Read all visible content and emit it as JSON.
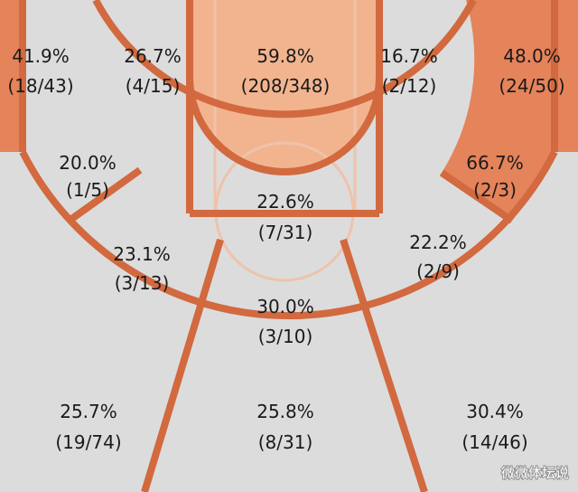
{
  "chart_data": {
    "type": "shot-chart",
    "zones": [
      {
        "id": "left-corner-three",
        "pct": "41.9%",
        "made_att": "(18/43)",
        "made": 18,
        "att": 43,
        "heat": "warm"
      },
      {
        "id": "left-short-midrange",
        "pct": "26.7%",
        "made_att": "(4/15)",
        "made": 4,
        "att": 15,
        "heat": "cool"
      },
      {
        "id": "restricted-area",
        "pct": "59.8%",
        "made_att": "(208/348)",
        "made": 208,
        "att": 348,
        "heat": "light"
      },
      {
        "id": "right-short-midrange",
        "pct": "16.7%",
        "made_att": "(2/12)",
        "made": 2,
        "att": 12,
        "heat": "cool"
      },
      {
        "id": "right-corner-three",
        "pct": "48.0%",
        "made_att": "(24/50)",
        "made": 24,
        "att": 50,
        "heat": "warm"
      },
      {
        "id": "left-baseline-midrange",
        "pct": "20.0%",
        "made_att": "(1/5)",
        "made": 1,
        "att": 5,
        "heat": "cool"
      },
      {
        "id": "right-baseline-midrange",
        "pct": "66.7%",
        "made_att": "(2/3)",
        "made": 2,
        "att": 3,
        "heat": "warm"
      },
      {
        "id": "paint-non-ra",
        "pct": "22.6%",
        "made_att": "(7/31)",
        "made": 7,
        "att": 31,
        "heat": "cool"
      },
      {
        "id": "left-wing-midrange",
        "pct": "23.1%",
        "made_att": "(3/13)",
        "made": 3,
        "att": 13,
        "heat": "cool"
      },
      {
        "id": "right-wing-midrange",
        "pct": "22.2%",
        "made_att": "(2/9)",
        "made": 2,
        "att": 9,
        "heat": "cool"
      },
      {
        "id": "top-key-midrange",
        "pct": "30.0%",
        "made_att": "(3/10)",
        "made": 3,
        "att": 10,
        "heat": "cool"
      },
      {
        "id": "left-wing-three",
        "pct": "25.7%",
        "made_att": "(19/74)",
        "made": 19,
        "att": 74,
        "heat": "cool"
      },
      {
        "id": "top-key-three",
        "pct": "25.8%",
        "made_att": "(8/31)",
        "made": 8,
        "att": 31,
        "heat": "cool"
      },
      {
        "id": "right-wing-three",
        "pct": "30.4%",
        "made_att": "(14/46)",
        "made": 14,
        "att": 46,
        "heat": "cool"
      }
    ]
  },
  "colors": {
    "background": "#dcdcdc",
    "line": "#d2693f",
    "warm": "#e5835a",
    "light": "#f2b48f",
    "faint_line": "#eec3ab",
    "text": "#1a1a1a"
  },
  "watermark": "微微体坛说"
}
